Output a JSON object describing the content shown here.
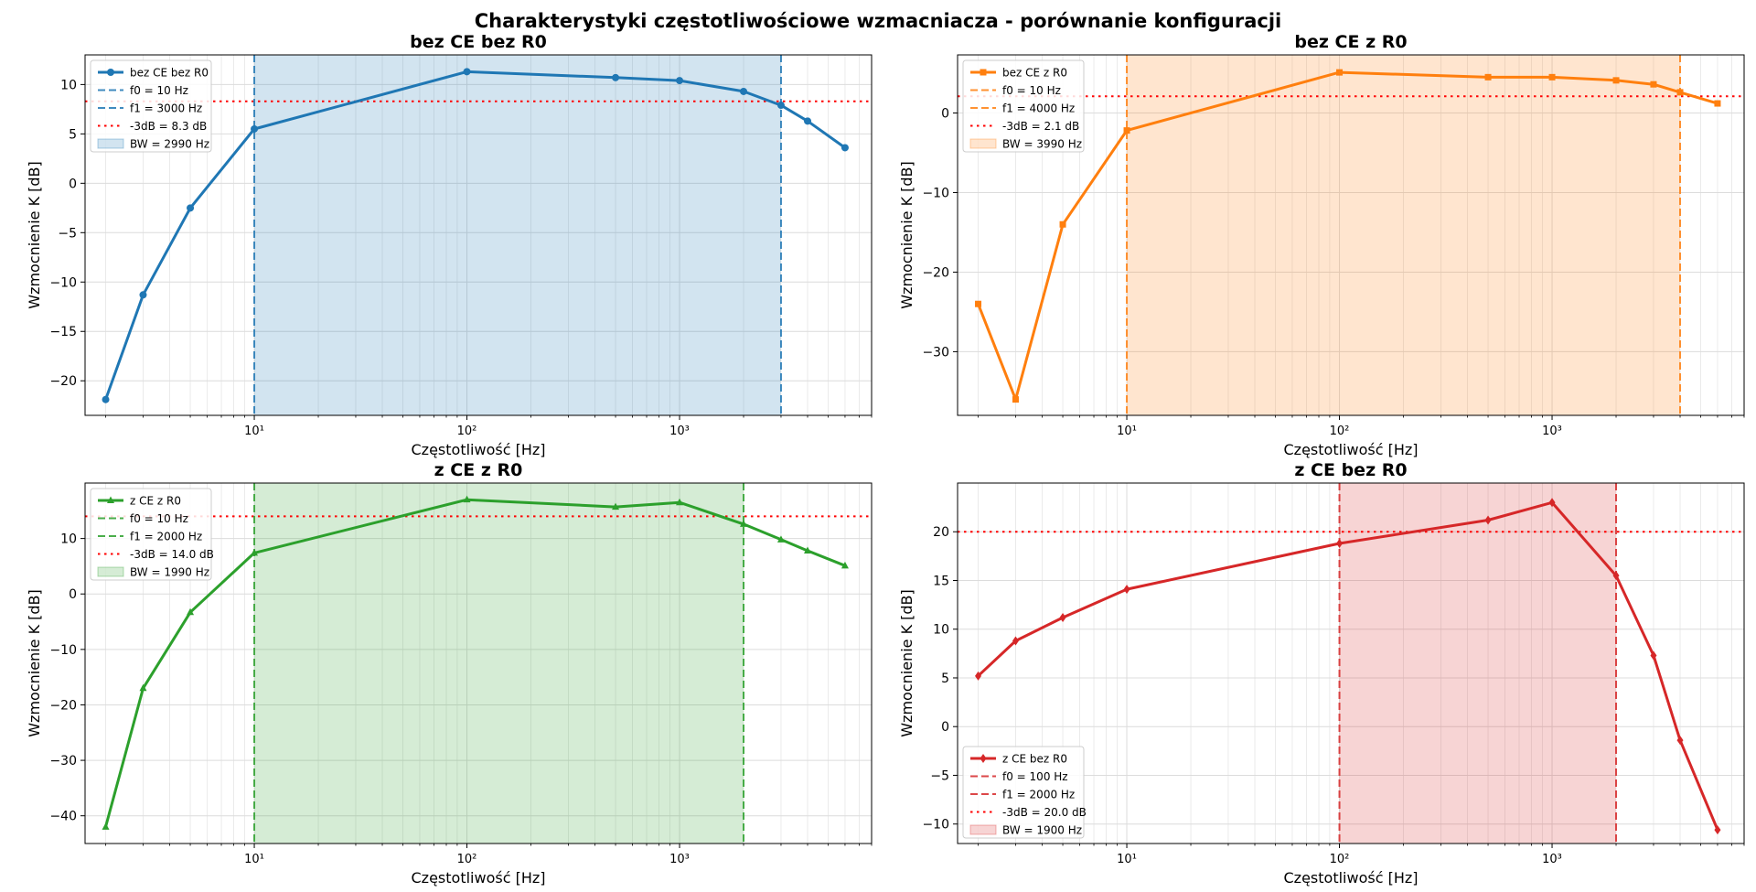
{
  "figure": {
    "suptitle": "Charakterystyki częstotliwościowe wzmacniacza - porównanie konfiguracji"
  },
  "chart_data": [
    {
      "type": "line",
      "title": "bez CE bez R0",
      "xlabel": "Częstotliwość [Hz]",
      "ylabel": "Wzmocnienie K [dB]",
      "xscale": "log",
      "xlim": [
        1.6,
        8000
      ],
      "ylim": [
        -23.5,
        13
      ],
      "y_ticks": [
        -20,
        -15,
        -10,
        -5,
        0,
        5,
        10
      ],
      "x_ticks": [
        {
          "value": 10,
          "label": "10¹"
        },
        {
          "value": 100,
          "label": "10²"
        },
        {
          "value": 1000,
          "label": "10³"
        }
      ],
      "color": "#1f77b4",
      "marker": "circle",
      "grid": true,
      "legend_position": "upper left",
      "series": [
        {
          "name": "bez CE bez R0",
          "x": [
            2,
            3,
            5,
            10,
            100,
            500,
            1000,
            2000,
            3000,
            4000,
            6000
          ],
          "y": [
            -21.9,
            -11.3,
            -2.5,
            5.5,
            11.3,
            10.7,
            10.4,
            9.3,
            7.9,
            6.3,
            3.6
          ]
        }
      ],
      "f0": 10,
      "f1": 3000,
      "cutoff_db": 8.3,
      "legend": [
        "bez CE bez R0",
        "f0 = 10 Hz",
        "f1 = 3000 Hz",
        "-3dB = 8.3 dB",
        "BW = 2990 Hz"
      ]
    },
    {
      "type": "line",
      "title": "bez CE z R0",
      "xlabel": "Częstotliwość [Hz]",
      "ylabel": "Wzmocnienie K [dB]",
      "xscale": "log",
      "xlim": [
        1.6,
        8000
      ],
      "ylim": [
        -38,
        7.3
      ],
      "y_ticks": [
        -30,
        -20,
        -10,
        0
      ],
      "x_ticks": [
        {
          "value": 10,
          "label": "10¹"
        },
        {
          "value": 100,
          "label": "10²"
        },
        {
          "value": 1000,
          "label": "10³"
        }
      ],
      "color": "#ff7f0e",
      "marker": "square",
      "grid": true,
      "legend_position": "upper left",
      "series": [
        {
          "name": "bez CE z R0",
          "x": [
            2,
            3,
            5,
            10,
            100,
            500,
            1000,
            2000,
            3000,
            4000,
            6000
          ],
          "y": [
            -24,
            -36,
            -14,
            -2.2,
            5.1,
            4.5,
            4.5,
            4.1,
            3.6,
            2.6,
            1.2
          ]
        }
      ],
      "f0": 10,
      "f1": 4000,
      "cutoff_db": 2.1,
      "legend": [
        "bez CE z R0",
        "f0 = 10 Hz",
        "f1 = 4000 Hz",
        "-3dB = 2.1 dB",
        "BW = 3990 Hz"
      ]
    },
    {
      "type": "line",
      "title": "z CE z R0",
      "xlabel": "Częstotliwość [Hz]",
      "ylabel": "Wzmocnienie K [dB]",
      "xscale": "log",
      "xlim": [
        1.6,
        8000
      ],
      "ylim": [
        -45,
        20
      ],
      "y_ticks": [
        -40,
        -30,
        -20,
        -10,
        0,
        10
      ],
      "x_ticks": [
        {
          "value": 10,
          "label": "10¹"
        },
        {
          "value": 100,
          "label": "10²"
        },
        {
          "value": 1000,
          "label": "10³"
        }
      ],
      "color": "#2ca02c",
      "marker": "triangle",
      "grid": true,
      "legend_position": "upper left",
      "series": [
        {
          "name": "z CE z R0",
          "x": [
            2,
            3,
            5,
            10,
            100,
            500,
            1000,
            2000,
            3000,
            4000,
            6000
          ],
          "y": [
            -42,
            -17,
            -3.3,
            7.4,
            17,
            15.7,
            16.5,
            12.6,
            9.8,
            7.8,
            5.1
          ]
        }
      ],
      "f0": 10,
      "f1": 2000,
      "cutoff_db": 14.0,
      "legend": [
        "z CE z R0",
        "f0 = 10 Hz",
        "f1 = 2000 Hz",
        "-3dB = 14.0 dB",
        "BW = 1990 Hz"
      ]
    },
    {
      "type": "line",
      "title": "z CE bez R0",
      "xlabel": "Częstotliwość [Hz]",
      "ylabel": "Wzmocnienie K [dB]",
      "xscale": "log",
      "xlim": [
        1.6,
        8000
      ],
      "ylim": [
        -12,
        25
      ],
      "y_ticks": [
        -10,
        -5,
        0,
        5,
        10,
        15,
        20
      ],
      "x_ticks": [
        {
          "value": 10,
          "label": "10¹"
        },
        {
          "value": 100,
          "label": "10²"
        },
        {
          "value": 1000,
          "label": "10³"
        }
      ],
      "color": "#d62728",
      "marker": "diamond",
      "grid": true,
      "legend_position": "lower left",
      "series": [
        {
          "name": "z CE bez R0",
          "x": [
            2,
            3,
            5,
            10,
            100,
            500,
            1000,
            2000,
            3000,
            4000,
            6000
          ],
          "y": [
            5.2,
            8.8,
            11.2,
            14.1,
            18.8,
            21.2,
            23,
            15.5,
            7.3,
            -1.4,
            -10.6
          ]
        }
      ],
      "f0": 100,
      "f1": 2000,
      "cutoff_db": 20.0,
      "legend": [
        "z CE bez R0",
        "f0 = 100 Hz",
        "f1 = 2000 Hz",
        "-3dB = 20.0 dB",
        "BW = 1900 Hz"
      ]
    }
  ]
}
